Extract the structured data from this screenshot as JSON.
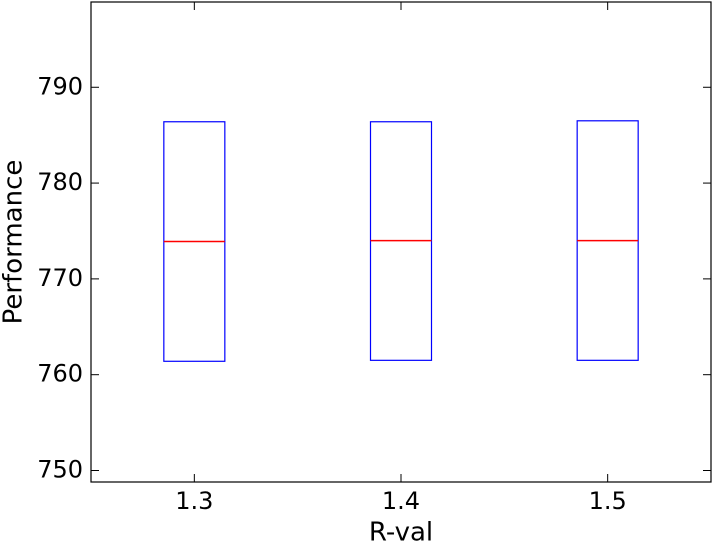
{
  "chart_data": {
    "type": "box",
    "xlabel": "R-val",
    "ylabel": "Performance",
    "boxes": [
      {
        "x": 1.3,
        "q1": 761.4,
        "median": 773.9,
        "q3": 786.4
      },
      {
        "x": 1.4,
        "q1": 761.5,
        "median": 774.0,
        "q3": 786.4
      },
      {
        "x": 1.5,
        "q1": 761.5,
        "median": 774.0,
        "q3": 786.5
      }
    ],
    "box_color": "#0000ff",
    "median_color": "#ff0000",
    "xlim": [
      1.25,
      1.55
    ],
    "xticks": [
      1.3,
      1.4,
      1.5
    ],
    "ylim": [
      748.8,
      798.9
    ],
    "yticks": [
      750,
      760,
      770,
      780,
      790
    ]
  }
}
